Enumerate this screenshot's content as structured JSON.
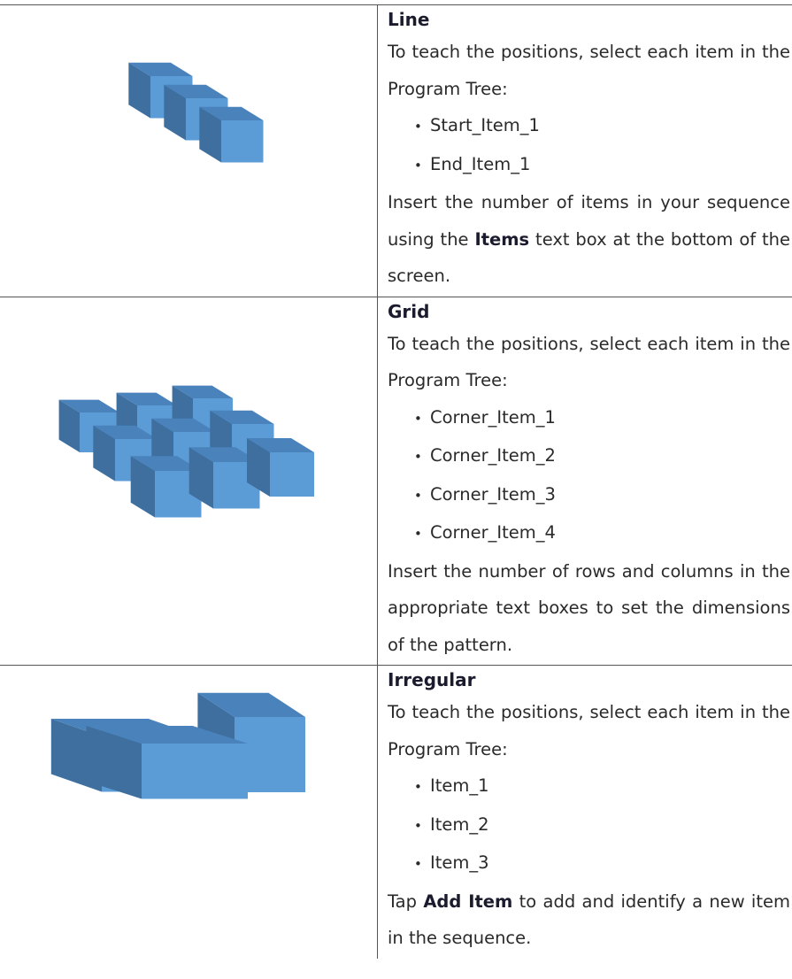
{
  "rows": [
    {
      "title": "Line",
      "intro": "To teach the positions, select each item in the Program Tree:",
      "items": [
        "Start_Item_1",
        "End_Item_1"
      ],
      "note": [
        {
          "text": "Insert the number of items in your sequence using the "
        },
        {
          "text": "Items",
          "bold": true
        },
        {
          "text": " text box at the bottom of the screen."
        }
      ]
    },
    {
      "title": "Grid",
      "intro": "To teach the positions, select each item in the Program Tree:",
      "items": [
        "Corner_Item_1",
        "Corner_Item_2",
        "Corner_Item_3",
        "Corner_Item_4"
      ],
      "note": [
        {
          "text": "Insert the number of rows and columns in the appropriate text boxes to set the dimensions of the pattern."
        }
      ]
    },
    {
      "title": "Irregular",
      "intro": "To teach the positions, select each item in the Program Tree:",
      "items": [
        "Item_1",
        "Item_2",
        "Item_3"
      ],
      "note": [
        {
          "text": "Tap "
        },
        {
          "text": "Add Item",
          "bold": true
        },
        {
          "text": " to add and identify a new item in the sequence."
        }
      ]
    }
  ]
}
